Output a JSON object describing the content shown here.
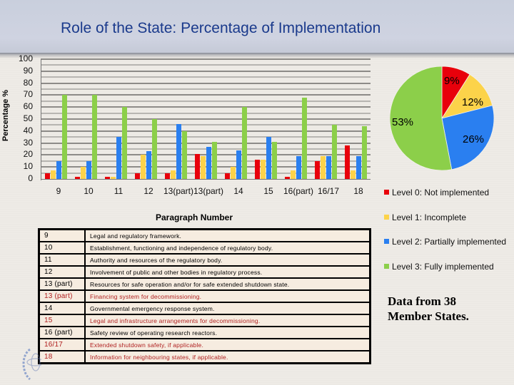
{
  "header": {
    "title": "Role of the State: Percentage of Implementation"
  },
  "colors": {
    "level0": "#e8000b",
    "level1": "#fcd34a",
    "level2": "#2a7ff0",
    "level3": "#8ccf4a",
    "title": "#1a3a8c",
    "table_red_text": "#b02020"
  },
  "chart_data": [
    {
      "type": "bar",
      "title": "Role of the State: Percentage of Implementation",
      "xlabel": "Paragraph Number",
      "ylabel": "Percentage %",
      "ylim": [
        0,
        100
      ],
      "yticks": [
        "0",
        "10",
        "20",
        "30",
        "40",
        "50",
        "60",
        "70",
        "80",
        "90",
        "100"
      ],
      "grid": true,
      "legend_position": "right",
      "categories": [
        "9",
        "10",
        "11",
        "12",
        "13(part)",
        "13(part)",
        "14",
        "15",
        "16(part)",
        "16/17",
        "18"
      ],
      "series": [
        {
          "name": "Level 0: Not implemented",
          "color": "#e8000b",
          "values": [
            5,
            2,
            2,
            5,
            5,
            21,
            5,
            16,
            2,
            15,
            28
          ]
        },
        {
          "name": "Level 1: Incomplete",
          "color": "#fcd34a",
          "values": [
            7,
            10,
            2,
            20,
            7,
            19,
            10,
            16,
            7,
            19,
            7
          ]
        },
        {
          "name": "Level 2: Partially implemented",
          "color": "#2a7ff0",
          "values": [
            15,
            15,
            35,
            23,
            46,
            27,
            24,
            35,
            19,
            19,
            19
          ]
        },
        {
          "name": "Level 3: Fully implemented",
          "color": "#8ccf4a",
          "values": [
            70,
            70,
            60,
            50,
            40,
            31,
            60,
            31,
            68,
            45,
            44
          ]
        }
      ]
    },
    {
      "type": "pie",
      "categories": [
        "Level 0: Not implemented",
        "Level 1: Incomplete",
        "Level 2: Partially implemented",
        "Level 3: Fully implemented"
      ],
      "values": [
        9,
        12,
        26,
        53
      ],
      "labels": [
        "9%",
        "12%",
        "26%",
        "53%"
      ],
      "colors": [
        "#e8000b",
        "#fcd34a",
        "#2a7ff0",
        "#8ccf4a"
      ]
    }
  ],
  "legend": [
    {
      "label": "Level 0: Not implemented",
      "color": "#e8000b"
    },
    {
      "label": "Level 1: Incomplete",
      "color": "#fcd34a"
    },
    {
      "label": "Level 2: Partially implemented",
      "color": "#2a7ff0"
    },
    {
      "label": "Level 3: Fully implemented",
      "color": "#8ccf4a"
    }
  ],
  "table": {
    "rows": [
      {
        "para": "9",
        "text": "Legal and regulatory framework.",
        "red": false
      },
      {
        "para": "10",
        "text": "Establishment, functioning and independence of regulatory body.",
        "red": false
      },
      {
        "para": "11",
        "text": "Authority and resources of the regulatory body.",
        "red": false
      },
      {
        "para": "12",
        "text": "Involvement of public and other bodies in regulatory process.",
        "red": false
      },
      {
        "para": "13 (part)",
        "text": "Resources for safe operation and/or for safe extended shutdown state.",
        "red": false
      },
      {
        "para": "13 (part)",
        "text": "Financing system for decommissioning.",
        "red": true
      },
      {
        "para": "14",
        "text": "Governmental emergency response system.",
        "red": false
      },
      {
        "para": "15",
        "text": "Legal and infrastructure arrangements for decommissioning.",
        "red": true
      },
      {
        "para": "16 (part)",
        "text": "Safety review of operating research reactors.",
        "red": false
      },
      {
        "para": "16/17",
        "text": "Extended shutdown safety, if applicable.",
        "red": true
      },
      {
        "para": "18",
        "text": "Information for neighbouring states, if applicable.",
        "red": true
      }
    ]
  },
  "note": {
    "line1": "Data from 38",
    "line2": "Member States."
  },
  "logo": {
    "icon": "iaea-logo-icon"
  }
}
